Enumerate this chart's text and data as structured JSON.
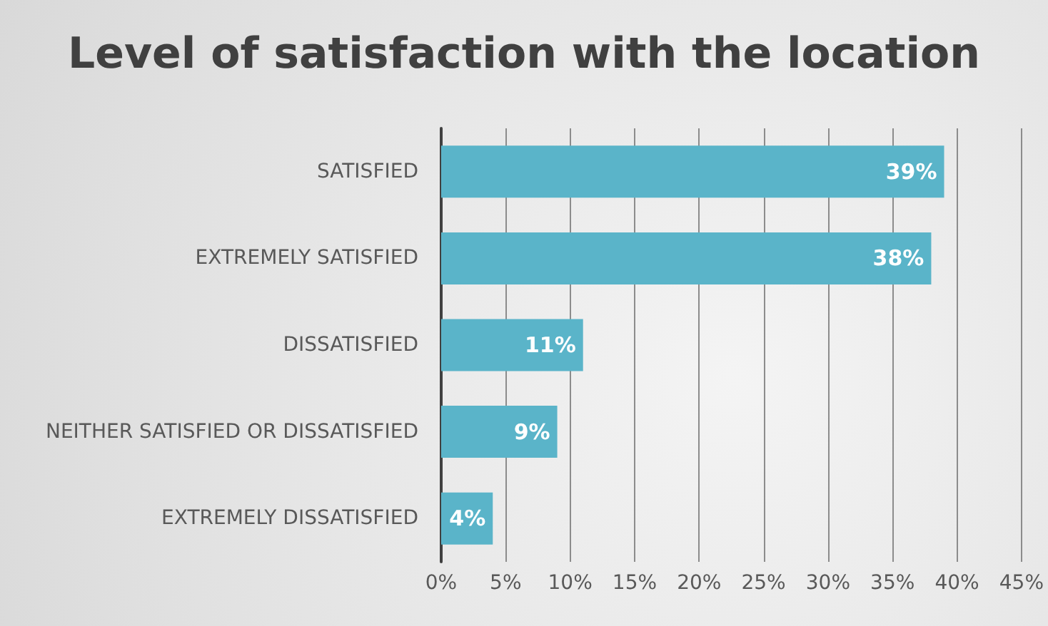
{
  "chart_data": {
    "type": "bar",
    "orientation": "horizontal",
    "title": "Level of satisfaction with the location",
    "categories": [
      "SATISFIED",
      "EXTREMELY SATISFIED",
      "DISSATISFIED",
      "NEITHER SATISFIED OR DISSATISFIED",
      "EXTREMELY DISSATISFIED"
    ],
    "values": [
      39,
      38,
      11,
      9,
      4
    ],
    "value_labels": [
      "39%",
      "38%",
      "11%",
      "9%",
      "4%"
    ],
    "color": "#5ab4c9",
    "xlim": [
      0,
      45
    ],
    "xticks": [
      {
        "value": 0,
        "label": "0%"
      },
      {
        "value": 5,
        "label": "5%"
      },
      {
        "value": 10,
        "label": "10%"
      },
      {
        "value": 15,
        "label": "15%"
      },
      {
        "value": 20,
        "label": "20%"
      },
      {
        "value": 25,
        "label": "25%"
      },
      {
        "value": 30,
        "label": "30%"
      },
      {
        "value": 35,
        "label": "35%"
      },
      {
        "value": 40,
        "label": "40%"
      },
      {
        "value": 45,
        "label": "45%"
      }
    ],
    "grid": "x"
  }
}
